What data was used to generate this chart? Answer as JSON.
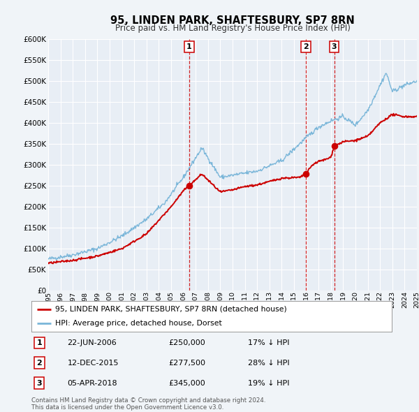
{
  "title": "95, LINDEN PARK, SHAFTESBURY, SP7 8RN",
  "subtitle": "Price paid vs. HM Land Registry's House Price Index (HPI)",
  "hpi_label": "HPI: Average price, detached house, Dorset",
  "property_label": "95, LINDEN PARK, SHAFTESBURY, SP7 8RN (detached house)",
  "hpi_color": "#7ab6d9",
  "property_color": "#cc0000",
  "sale_color": "#cc0000",
  "vline_color": "#cc0000",
  "ylim": [
    0,
    600000
  ],
  "ytick_vals": [
    0,
    50000,
    100000,
    150000,
    200000,
    250000,
    300000,
    350000,
    400000,
    450000,
    500000,
    550000,
    600000
  ],
  "ytick_labels": [
    "£0",
    "£50K",
    "£100K",
    "£150K",
    "£200K",
    "£250K",
    "£300K",
    "£350K",
    "£400K",
    "£450K",
    "£500K",
    "£550K",
    "£600K"
  ],
  "xmin": 1995,
  "xmax": 2025,
  "sales": [
    {
      "num": 1,
      "date_label": "22-JUN-2006",
      "price": 250000,
      "pct": "17%",
      "year": 2006.47
    },
    {
      "num": 2,
      "date_label": "12-DEC-2015",
      "price": 277500,
      "pct": "28%",
      "year": 2015.95
    },
    {
      "num": 3,
      "date_label": "05-APR-2018",
      "price": 345000,
      "pct": "19%",
      "year": 2018.27
    }
  ],
  "footnote": "Contains HM Land Registry data © Crown copyright and database right 2024.\nThis data is licensed under the Open Government Licence v3.0.",
  "background_color": "#f0f4f8",
  "plot_bg_color": "#e8eef5",
  "grid_color": "#ffffff"
}
